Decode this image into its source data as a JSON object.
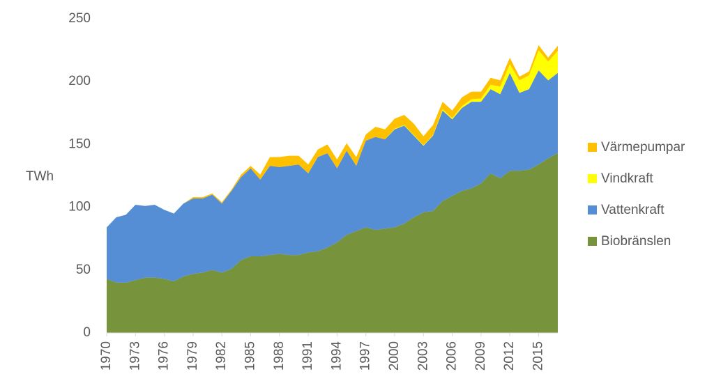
{
  "chart_data": {
    "type": "stacked-area",
    "y_label": "TWh",
    "x": [
      1970,
      1971,
      1972,
      1973,
      1974,
      1975,
      1976,
      1977,
      1978,
      1979,
      1980,
      1981,
      1982,
      1983,
      1984,
      1985,
      1986,
      1987,
      1988,
      1989,
      1990,
      1991,
      1992,
      1993,
      1994,
      1995,
      1996,
      1997,
      1998,
      1999,
      2000,
      2001,
      2002,
      2003,
      2004,
      2005,
      2006,
      2007,
      2008,
      2009,
      2010,
      2011,
      2012,
      2013,
      2014,
      2015,
      2016,
      2017
    ],
    "xlim": [
      1970,
      2017
    ],
    "xticks": [
      1970,
      1973,
      1976,
      1979,
      1982,
      1985,
      1988,
      1991,
      1994,
      1997,
      2000,
      2003,
      2006,
      2009,
      2012,
      2015
    ],
    "ylim": [
      0,
      250
    ],
    "yticks": [
      0,
      50,
      100,
      150,
      200,
      250
    ],
    "grid": false,
    "legend": "right",
    "series": [
      {
        "name": "Biobränslen",
        "color": "#77933c",
        "values": [
          43,
          40,
          40,
          42,
          44,
          44,
          43,
          41,
          45,
          47,
          48,
          50,
          48,
          51,
          58,
          61,
          61,
          62,
          63,
          62,
          62,
          64,
          65,
          68,
          72,
          78,
          81,
          84,
          82,
          83,
          84,
          87,
          92,
          96,
          97,
          105,
          109,
          113,
          115,
          119,
          127,
          123,
          129,
          129,
          130,
          134,
          139,
          143
        ]
      },
      {
        "name": "Vattenkraft",
        "color": "#558ed5",
        "values": [
          41,
          52,
          54,
          60,
          57,
          58,
          55,
          54,
          58,
          60,
          59,
          60,
          55,
          62,
          66,
          70,
          61,
          71,
          69,
          71,
          72,
          63,
          75,
          75,
          59,
          67,
          52,
          69,
          74,
          71,
          78,
          78,
          65,
          53,
          60,
          72,
          61,
          66,
          69,
          65,
          67,
          67,
          78,
          62,
          64,
          75,
          62,
          64
        ]
      },
      {
        "name": "Vindkraft",
        "color": "#ffff00",
        "values": [
          0,
          0,
          0,
          0,
          0,
          0,
          0,
          0,
          0,
          0,
          0,
          0,
          0,
          0,
          0,
          0,
          0,
          0,
          0,
          0,
          0,
          0,
          0,
          0,
          0,
          0,
          0,
          0,
          0,
          0,
          0.5,
          0.5,
          0.5,
          0.5,
          0.5,
          1,
          1,
          1.4,
          2,
          2.5,
          3.5,
          6,
          7,
          10,
          11,
          16,
          15,
          17.6
        ]
      },
      {
        "name": "Värmepumpar",
        "color": "#ffc000",
        "values": [
          0,
          0,
          0,
          0,
          0,
          0,
          0,
          0,
          0,
          1,
          1,
          1,
          1,
          1,
          2,
          2,
          4,
          7,
          8,
          8,
          7,
          7,
          6,
          7,
          7,
          6,
          7,
          5,
          8,
          8,
          8,
          8,
          9,
          7,
          8,
          6,
          6,
          7,
          6,
          5.5,
          5.5,
          5,
          5,
          3,
          3,
          4,
          3,
          4
        ]
      }
    ]
  }
}
